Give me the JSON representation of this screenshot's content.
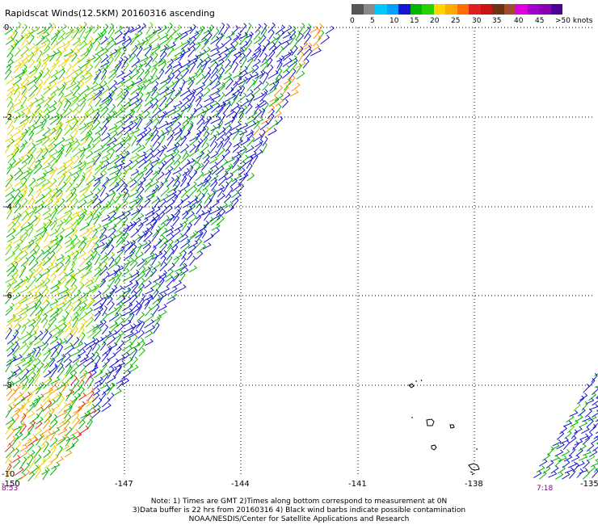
{
  "title": "Rapidscat Winds(12.5KM) 20160316 ascending",
  "legend": {
    "unit": ">50 knots",
    "labels": [
      "0",
      "5",
      "10",
      "15",
      "20",
      "25",
      "30",
      "35",
      "40",
      "45"
    ],
    "colors": [
      "#555555",
      "#8a8a8a",
      "#00c8ff",
      "#00a0ff",
      "#1414d2",
      "#00b400",
      "#28d200",
      "#ffd200",
      "#ffaa00",
      "#ff6e00",
      "#e11e1e",
      "#c81414",
      "#6e3214",
      "#a05028",
      "#dc00dc",
      "#a000c8",
      "#8c00b4",
      "#500096"
    ]
  },
  "lat_labels": [
    "0",
    "-2",
    "-4",
    "-6",
    "-8",
    "-10"
  ],
  "lon_labels": [
    "-150",
    "-147",
    "-144",
    "-141",
    "-138",
    "-135"
  ],
  "times": {
    "left": "8:53",
    "right": "7:18"
  },
  "notes": [
    "Note: 1) Times are GMT 2)Times along bottom correspond to measurement at 0N",
    "3)Data buffer is 22 hrs from 20160316 4) Black wind barbs indicate possible contamination",
    "NOAA/NESDIS/Center for Satellite Applications and Research"
  ],
  "barb_colors": {
    "blue": "#1414d2",
    "green": "#00b400",
    "lightgreen": "#50d200",
    "yellow": "#e6d200",
    "orange": "#ff8c00",
    "red": "#e11e1e"
  }
}
